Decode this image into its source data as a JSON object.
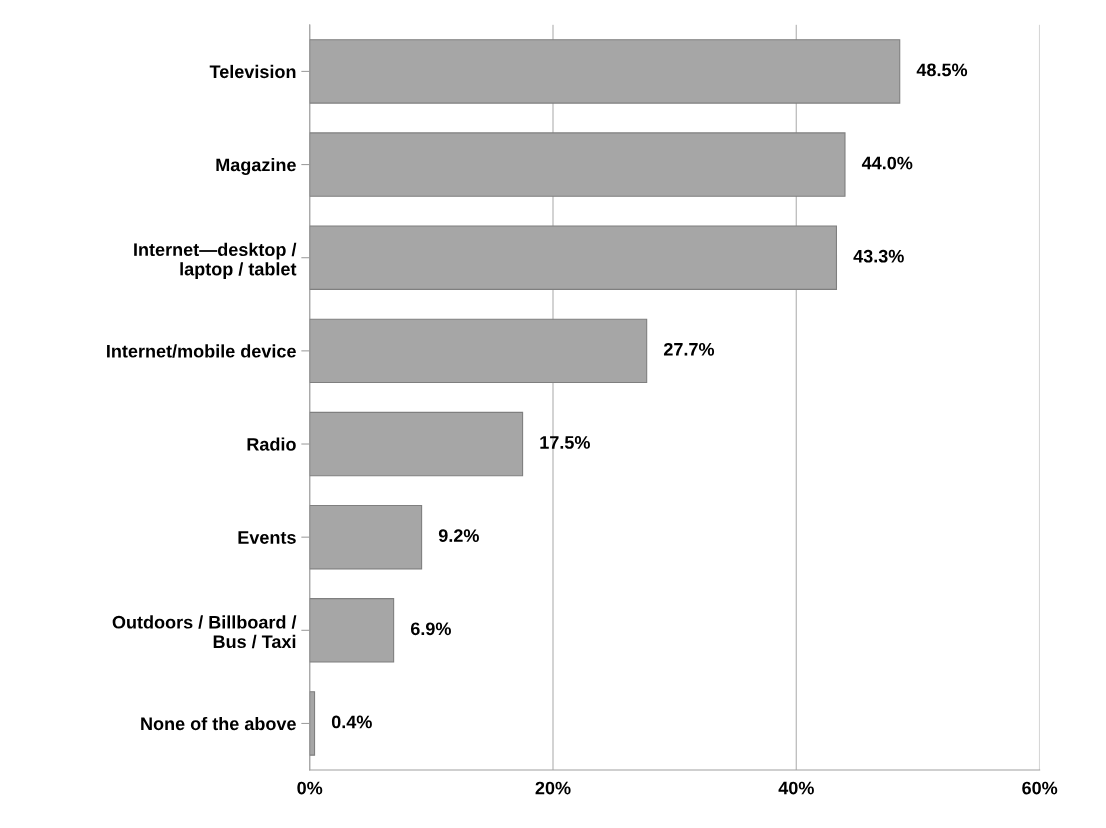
{
  "chart_data": {
    "type": "bar",
    "orientation": "horizontal",
    "categories": [
      "Television",
      "Magazine",
      "Internet—desktop /\nlaptop / tablet",
      "Internet/mobile device",
      "Radio",
      "Events",
      "Outdoors / Billboard /\nBus / Taxi",
      "None of the above"
    ],
    "values": [
      48.5,
      44.0,
      43.3,
      27.7,
      17.5,
      9.2,
      6.9,
      0.4
    ],
    "value_labels": [
      "48.5%",
      "44.0%",
      "43.3%",
      "27.7%",
      "17.5%",
      "9.2%",
      "6.9%",
      "0.4%"
    ],
    "color": "#a6a6a6",
    "xlim": [
      0,
      60
    ],
    "xticks": [
      {
        "value": 0,
        "label": "0%"
      },
      {
        "value": 20,
        "label": "20%"
      },
      {
        "value": 40,
        "label": "40%"
      },
      {
        "value": 60,
        "label": "60%"
      }
    ],
    "grid": "x"
  }
}
